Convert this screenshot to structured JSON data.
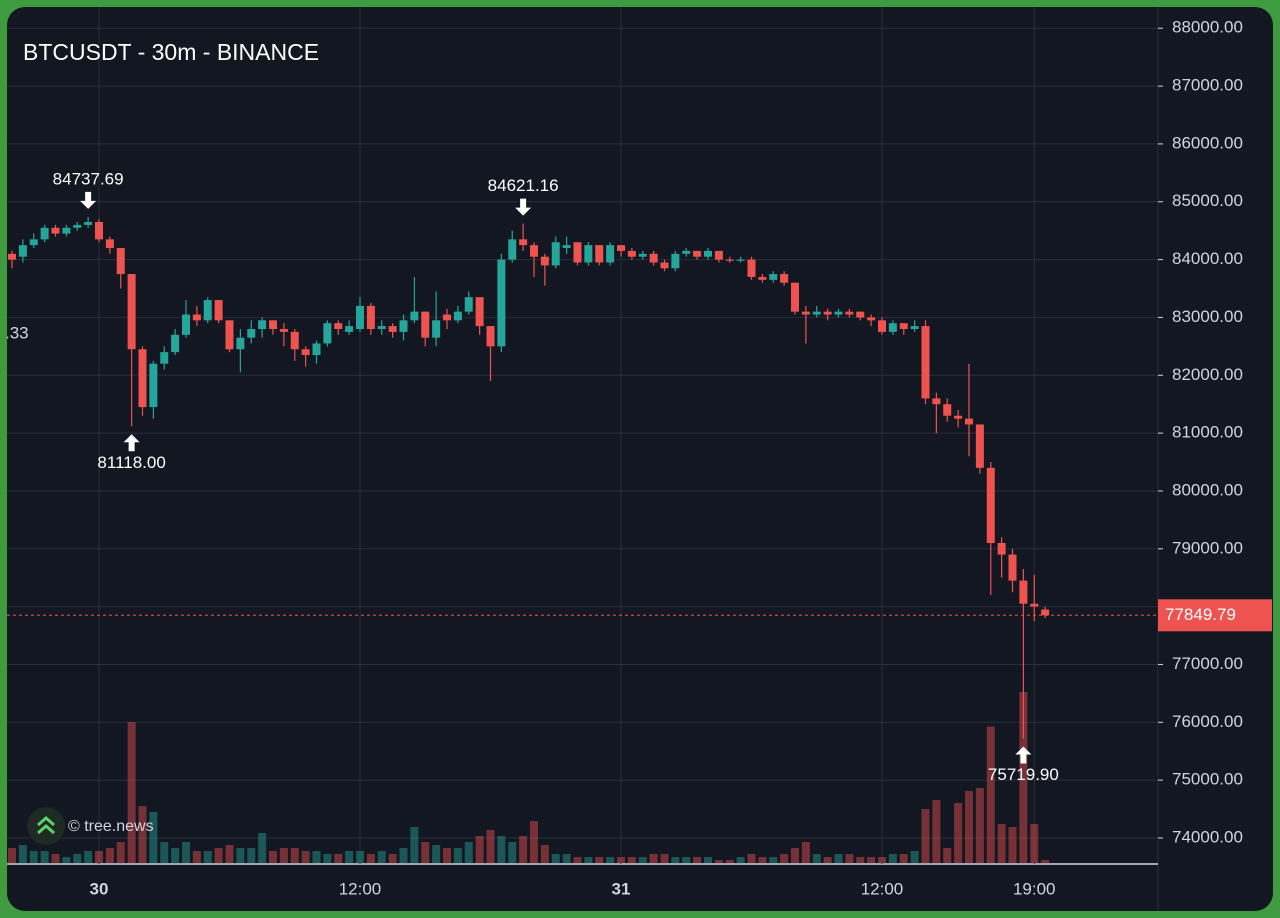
{
  "chart_data": {
    "type": "candlestick",
    "title": "BTCUSDT - 30m - BINANCE",
    "left_label": ".33",
    "watermark": "© tree.news",
    "categories": [
      null,
      null,
      null,
      null,
      null,
      null,
      null,
      null,
      "30",
      null,
      null,
      null,
      null,
      null,
      null,
      null,
      null,
      null,
      null,
      null,
      null,
      null,
      null,
      null,
      null,
      null,
      null,
      null,
      null,
      null,
      null,
      null,
      "12:00",
      null,
      null,
      null,
      null,
      null,
      null,
      null,
      null,
      null,
      null,
      null,
      null,
      null,
      null,
      null,
      null,
      null,
      null,
      null,
      null,
      null,
      null,
      null,
      "31",
      null,
      null,
      null,
      null,
      null,
      null,
      null,
      null,
      null,
      null,
      null,
      null,
      null,
      null,
      null,
      null,
      null,
      null,
      null,
      null,
      null,
      null,
      null,
      "12:00",
      null,
      null,
      null,
      null,
      null,
      null,
      null,
      null,
      null,
      null,
      null,
      null,
      null,
      "19:00",
      null
    ],
    "open": [
      84100,
      84050,
      84250,
      84350,
      84550,
      84450,
      84550,
      84600,
      84650,
      84350,
      84200,
      83750,
      82450,
      81450,
      82200,
      82400,
      82700,
      83050,
      82950,
      83300,
      82950,
      82450,
      82650,
      82800,
      82950,
      82800,
      82750,
      82450,
      82350,
      82550,
      82900,
      82750,
      82800,
      83200,
      82800,
      82850,
      82750,
      82950,
      83100,
      82650,
      83050,
      82950,
      83100,
      83350,
      82850,
      82500,
      84000,
      84350,
      84250,
      84050,
      83900,
      84200,
      84300,
      83950,
      84250,
      83950,
      84250,
      84150,
      84050,
      84100,
      83950,
      83850,
      84100,
      84150,
      84050,
      84150,
      84000,
      83980,
      84000,
      83700,
      83650,
      83750,
      83600,
      83100,
      83050,
      83100,
      83050,
      83100,
      83100,
      83000,
      82950,
      82750,
      82900,
      82800,
      82850,
      81600,
      81500,
      81300,
      81250,
      81150,
      80400,
      79100,
      78900,
      78450,
      78050,
      77950
    ],
    "high": [
      84150,
      84350,
      84450,
      84600,
      84600,
      84600,
      84650,
      84737.69,
      84700,
      84400,
      84200,
      83750,
      82500,
      82250,
      82500,
      82800,
      83300,
      83200,
      83350,
      83300,
      82950,
      82800,
      82950,
      83000,
      82950,
      82900,
      82800,
      82500,
      82600,
      82950,
      82950,
      82950,
      83350,
      83250,
      82950,
      82900,
      83050,
      83700,
      83100,
      83450,
      83150,
      83200,
      83450,
      83350,
      82850,
      84100,
      84500,
      84621.16,
      84300,
      84100,
      84400,
      84400,
      84300,
      84300,
      84250,
      84300,
      84250,
      84200,
      84150,
      84150,
      84000,
      84150,
      84200,
      84150,
      84200,
      84150,
      84050,
      84050,
      84050,
      83750,
      83800,
      83800,
      83600,
      83200,
      83200,
      83150,
      83150,
      83150,
      83100,
      83050,
      83000,
      82950,
      82900,
      82950,
      82950,
      81700,
      81600,
      81400,
      82200,
      81150,
      80500,
      79200,
      79000,
      78650,
      78550,
      78000
    ],
    "low": [
      83850,
      83950,
      84200,
      84300,
      84400,
      84400,
      84500,
      84550,
      84300,
      84100,
      83500,
      81118,
      81300,
      81250,
      82100,
      82350,
      82650,
      82850,
      82900,
      82900,
      82400,
      82050,
      82550,
      82650,
      82700,
      82500,
      82250,
      82150,
      82200,
      82500,
      82700,
      82700,
      82750,
      82700,
      82700,
      82650,
      82600,
      82900,
      82500,
      82500,
      82800,
      82900,
      83050,
      82700,
      81900,
      82400,
      83950,
      84150,
      83700,
      83550,
      83850,
      84100,
      83900,
      83900,
      83900,
      83900,
      84050,
      84000,
      84000,
      83900,
      83800,
      83800,
      84050,
      84000,
      84000,
      83950,
      83950,
      83950,
      83650,
      83600,
      83600,
      83550,
      83050,
      82550,
      83000,
      82950,
      83000,
      83000,
      82950,
      82850,
      82700,
      82700,
      82700,
      82750,
      81500,
      81000,
      81200,
      81100,
      80600,
      80300,
      78200,
      78500,
      78250,
      75719.9,
      77750,
      77800
    ],
    "close": [
      84000,
      84250,
      84350,
      84550,
      84450,
      84550,
      84600,
      84650,
      84350,
      84200,
      83750,
      82450,
      81450,
      82200,
      82400,
      82700,
      83050,
      82950,
      83300,
      82950,
      82450,
      82650,
      82800,
      82950,
      82800,
      82750,
      82450,
      82350,
      82550,
      82900,
      82800,
      82850,
      83200,
      82800,
      82850,
      82750,
      82950,
      83100,
      82650,
      82950,
      82950,
      83100,
      83350,
      82850,
      82500,
      84000,
      84350,
      84250,
      84050,
      83900,
      84300,
      84250,
      83950,
      84250,
      83950,
      84250,
      84150,
      84050,
      84100,
      83950,
      83850,
      84100,
      84150,
      84050,
      84150,
      84000,
      83980,
      84000,
      83700,
      83650,
      83750,
      83600,
      83100,
      83050,
      83100,
      83050,
      83100,
      83050,
      83000,
      82950,
      82750,
      82900,
      82800,
      82850,
      81600,
      81500,
      81300,
      81250,
      81150,
      80400,
      79100,
      78900,
      78450,
      78050,
      78000,
      77849.79
    ],
    "volume": [
      10,
      12,
      8,
      8,
      6,
      4,
      6,
      8,
      8,
      10,
      14,
      94,
      38,
      34,
      14,
      10,
      14,
      8,
      8,
      10,
      12,
      10,
      10,
      20,
      8,
      10,
      10,
      8,
      8,
      6,
      6,
      8,
      8,
      6,
      8,
      6,
      10,
      24,
      14,
      12,
      10,
      10,
      14,
      18,
      22,
      18,
      14,
      18,
      28,
      12,
      6,
      6,
      4,
      4,
      4,
      4,
      4,
      4,
      4,
      6,
      6,
      4,
      4,
      4,
      4,
      2,
      2,
      4,
      6,
      4,
      4,
      6,
      10,
      14,
      6,
      4,
      6,
      6,
      4,
      4,
      4,
      6,
      6,
      8,
      36,
      42,
      10,
      40,
      48,
      50,
      91,
      26,
      24,
      114,
      26,
      2
    ],
    "vlim": [
      0,
      120
    ],
    "up_color": "#26a69a",
    "down_color": "#ef5350",
    "ylim": [
      73550,
      88350
    ],
    "yticks": [
      {
        "value": 74000,
        "label": "74000.00"
      },
      {
        "value": 75000,
        "label": "75000.00"
      },
      {
        "value": 76000,
        "label": "76000.00"
      },
      {
        "value": 77000,
        "label": "77000.00"
      },
      {
        "value": 78000,
        "label": "78000.00"
      },
      {
        "value": 79000,
        "label": "79000.00"
      },
      {
        "value": 80000,
        "label": "80000.00"
      },
      {
        "value": 81000,
        "label": "81000.00"
      },
      {
        "value": 82000,
        "label": "82000.00"
      },
      {
        "value": 83000,
        "label": "83000.00"
      },
      {
        "value": 84000,
        "label": "84000.00"
      },
      {
        "value": 85000,
        "label": "85000.00"
      },
      {
        "value": 86000,
        "label": "86000.00"
      },
      {
        "value": 87000,
        "label": "87000.00"
      },
      {
        "value": 88000,
        "label": "88000.00"
      }
    ],
    "grid": true,
    "day_labels_bold": true,
    "last_price": {
      "value": 77849.79,
      "label": "77849.79"
    },
    "markers": [
      {
        "value": 84737.69,
        "label": "84737.69"
      },
      {
        "value": 81118,
        "label": "81118.00"
      },
      {
        "value": 84621.16,
        "label": "84621.16"
      },
      {
        "value": 75719.9,
        "label": "75719.90"
      }
    ]
  }
}
